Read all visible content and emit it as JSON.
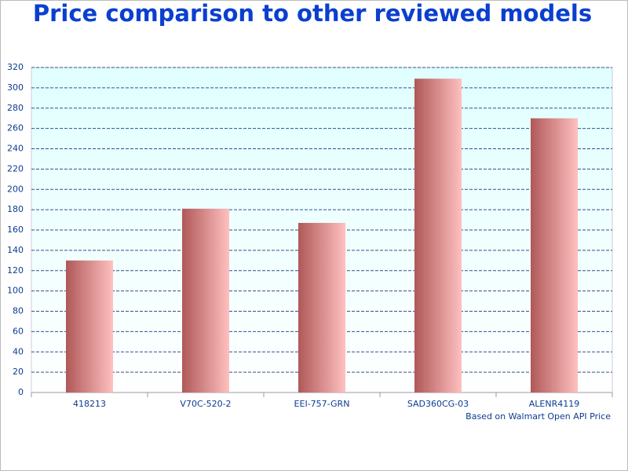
{
  "chart_data": {
    "type": "bar",
    "title": "Price comparison to other reviewed models",
    "annotation": "Based on Walmart Open API Price",
    "categories": [
      "418213",
      "V70C-520-2",
      "EEI-757-GRN",
      "SAD360CG-03",
      "ALENR4119"
    ],
    "values": [
      130,
      181,
      167,
      309,
      270
    ],
    "colors": [
      "#b05858",
      "#ffc0c0"
    ],
    "ylim": [
      0,
      320
    ],
    "yticks": [
      0,
      20,
      40,
      60,
      80,
      100,
      120,
      140,
      160,
      180,
      200,
      220,
      240,
      260,
      280,
      300,
      320
    ],
    "grid": true
  }
}
